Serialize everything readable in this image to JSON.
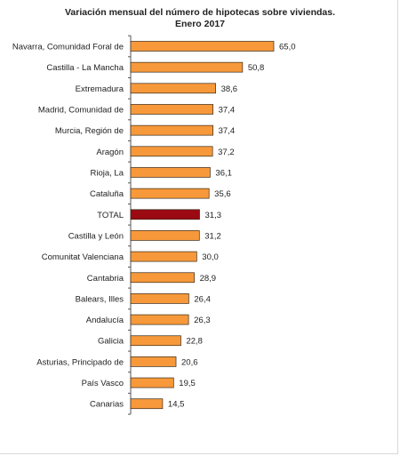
{
  "chart_data": {
    "type": "bar",
    "orientation": "horizontal",
    "title": "Variación  mensual del número de hipotecas sobre viviendas.",
    "subtitle": "Enero 2017",
    "categories": [
      "Navarra, Comunidad Foral de",
      "Castilla - La Mancha",
      "Extremadura",
      "Madrid, Comunidad de",
      "Murcia, Región de",
      "Aragón",
      "Rioja, La",
      "Cataluña",
      "TOTAL",
      "Castilla y León",
      "Comunitat Valenciana",
      "Cantabria",
      "Balears, Illes",
      "Andalucía",
      "Galicia",
      "Asturias, Principado de",
      "País Vasco",
      "Canarias"
    ],
    "values": [
      65.0,
      50.8,
      38.6,
      37.4,
      37.4,
      37.2,
      36.1,
      35.6,
      31.3,
      31.2,
      30.0,
      28.9,
      26.4,
      26.3,
      22.8,
      20.6,
      19.5,
      14.5
    ],
    "value_labels": [
      "65,0",
      "50,8",
      "38,6",
      "37,4",
      "37,4",
      "37,2",
      "36,1",
      "35,6",
      "31,3",
      "31,2",
      "30,0",
      "28,9",
      "26,4",
      "26,3",
      "22,8",
      "20,6",
      "19,5",
      "14,5"
    ],
    "highlight_category": "TOTAL",
    "xlim": [
      0,
      65
    ],
    "grid": false,
    "colors": {
      "bar": "#F7993A",
      "bar_stroke": "#3a2a1a",
      "highlight": "#9B0A12",
      "axis": "#555555",
      "text": "#222222"
    }
  }
}
